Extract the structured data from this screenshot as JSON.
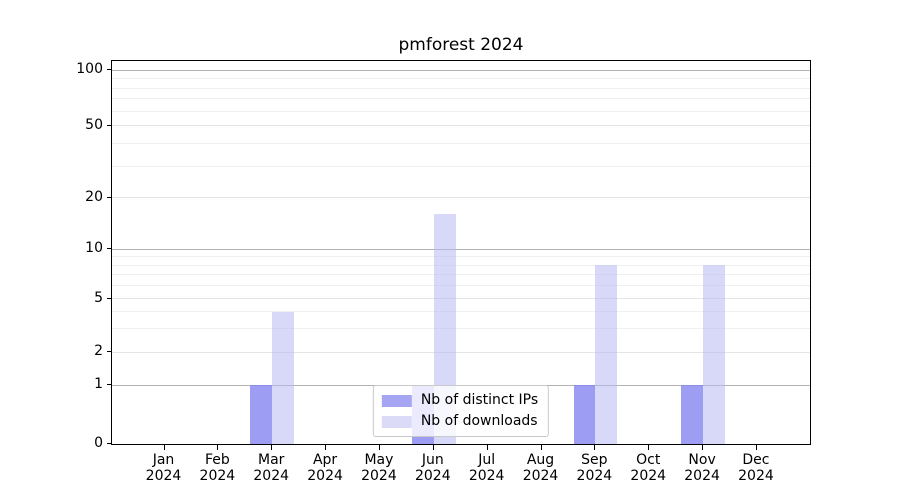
{
  "title": "pmforest 2024",
  "chart_data": {
    "type": "bar",
    "title": "pmforest 2024",
    "categories": [
      "Jan 2024",
      "Feb 2024",
      "Mar 2024",
      "Apr 2024",
      "May 2024",
      "Jun 2024",
      "Jul 2024",
      "Aug 2024",
      "Sep 2024",
      "Oct 2024",
      "Nov 2024",
      "Dec 2024"
    ],
    "series": [
      {
        "name": "Nb of distinct IPs",
        "color": "#a5a5f3",
        "values": [
          0,
          0,
          1,
          0,
          0,
          1,
          0,
          0,
          1,
          0,
          1,
          0
        ]
      },
      {
        "name": "Nb of downloads",
        "color": "#dbdbf8",
        "values": [
          0,
          0,
          4,
          0,
          0,
          16,
          0,
          0,
          8,
          0,
          8,
          0
        ]
      }
    ],
    "xlabel": "",
    "ylabel": "",
    "yscale": "symlog",
    "yticks": [
      0,
      1,
      2,
      5,
      10,
      20,
      50,
      100
    ],
    "minor_yticks": [
      3,
      4,
      6,
      7,
      8,
      9,
      30,
      40,
      60,
      70,
      80,
      90
    ],
    "ylim": [
      0,
      110
    ],
    "grid": true,
    "legend_position": "lower center",
    "colors": {
      "bar_distinct_ips": "#a5a5f3",
      "bar_downloads": "#dbdbf8",
      "grid_decade": "#b2b2b2",
      "grid_mid": "#e4e4e4",
      "grid_minor": "#efefef",
      "spine": "#000000"
    }
  }
}
